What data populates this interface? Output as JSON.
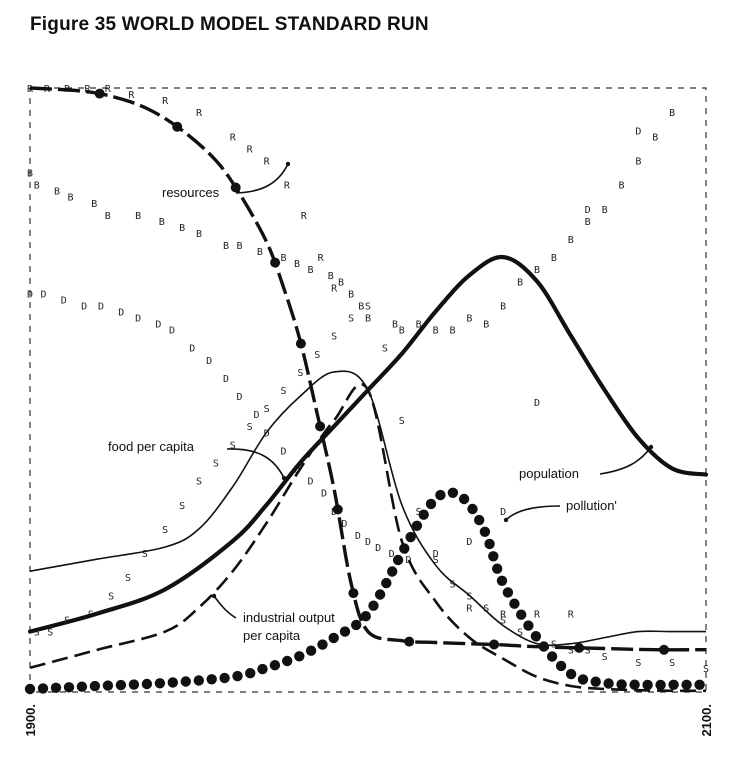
{
  "title": "Figure 35 WORLD MODEL STANDARD RUN",
  "chart_data": {
    "type": "line",
    "title": "Figure 35 WORLD MODEL STANDARD RUN",
    "xlim": [
      1900,
      2100
    ],
    "ylim": [
      0,
      1
    ],
    "x_tick_labels": [
      "1900.",
      "2100."
    ],
    "grid": false,
    "series": [
      {
        "name": "resources",
        "style": "thick-dashed-dots",
        "x": [
          1900,
          1915,
          1925,
          1935,
          1945,
          1955,
          1962,
          1970,
          1975,
          1980,
          1985,
          1990,
          1995,
          2000,
          2010,
          2020,
          2030,
          2040,
          2050,
          2070,
          2085,
          2100
        ],
        "y": [
          1.0,
          0.995,
          0.985,
          0.965,
          0.93,
          0.88,
          0.825,
          0.745,
          0.67,
          0.58,
          0.46,
          0.335,
          0.18,
          0.1,
          0.085,
          0.082,
          0.08,
          0.078,
          0.075,
          0.072,
          0.07,
          0.07
        ]
      },
      {
        "name": "population",
        "style": "thick-solid",
        "x": [
          1900,
          1920,
          1940,
          1960,
          1970,
          1980,
          1990,
          2000,
          2010,
          2020,
          2030,
          2040,
          2050,
          2060,
          2070,
          2080,
          2090,
          2100
        ],
        "y": [
          0.1,
          0.13,
          0.17,
          0.25,
          0.31,
          0.38,
          0.44,
          0.5,
          0.56,
          0.63,
          0.69,
          0.72,
          0.68,
          0.59,
          0.5,
          0.42,
          0.37,
          0.36
        ]
      },
      {
        "name": "pollution",
        "style": "dots",
        "x": [
          1900,
          1920,
          1940,
          1960,
          1970,
          1980,
          1990,
          2000,
          2010,
          2015,
          2020,
          2025,
          2030,
          2035,
          2040,
          2050,
          2060,
          2070,
          2080,
          2090,
          2100
        ],
        "y": [
          0.005,
          0.01,
          0.015,
          0.025,
          0.04,
          0.06,
          0.09,
          0.13,
          0.23,
          0.28,
          0.32,
          0.33,
          0.31,
          0.26,
          0.18,
          0.09,
          0.03,
          0.015,
          0.012,
          0.012,
          0.012
        ]
      },
      {
        "name": "food per capita",
        "style": "thin-solid",
        "x": [
          1900,
          1920,
          1940,
          1950,
          1960,
          1970,
          1980,
          1990,
          2000,
          2010,
          2020,
          2030,
          2040,
          2050,
          2060,
          2070,
          2080,
          2090,
          2100
        ],
        "y": [
          0.2,
          0.22,
          0.24,
          0.27,
          0.34,
          0.43,
          0.49,
          0.53,
          0.5,
          0.31,
          0.21,
          0.16,
          0.11,
          0.08,
          0.08,
          0.09,
          0.1,
          0.1,
          0.1
        ]
      },
      {
        "name": "industrial output per capita",
        "style": "dashed",
        "x": [
          1900,
          1920,
          1940,
          1950,
          1960,
          1970,
          1980,
          1990,
          2000,
          2010,
          2020,
          2030,
          2040,
          2050,
          2060,
          2070,
          2080,
          2090,
          2100
        ],
        "y": [
          0.04,
          0.07,
          0.1,
          0.14,
          0.2,
          0.28,
          0.37,
          0.45,
          0.5,
          0.25,
          0.15,
          0.09,
          0.055,
          0.025,
          0.01,
          0.005,
          0.003,
          0.002,
          0.002
        ]
      }
    ],
    "marker_series": [
      {
        "letter": "B",
        "x": [
          1900,
          1902,
          1908,
          1912,
          1919,
          1923,
          1932,
          1939,
          1945,
          1950,
          1958,
          1962,
          1968,
          1975,
          1979,
          1983,
          1989,
          1992,
          1995,
          1998,
          2000,
          2008,
          2010,
          2015,
          2020,
          2025,
          2030,
          2035,
          2040,
          2045,
          2050,
          2055,
          2060,
          2065,
          2070,
          2075,
          2080,
          2085,
          2090
        ],
        "y": [
          0.86,
          0.84,
          0.83,
          0.82,
          0.81,
          0.79,
          0.79,
          0.78,
          0.77,
          0.76,
          0.74,
          0.74,
          0.73,
          0.72,
          0.71,
          0.7,
          0.69,
          0.68,
          0.66,
          0.64,
          0.62,
          0.61,
          0.6,
          0.61,
          0.6,
          0.6,
          0.62,
          0.61,
          0.64,
          0.68,
          0.7,
          0.72,
          0.75,
          0.78,
          0.8,
          0.84,
          0.88,
          0.92,
          0.96
        ]
      },
      {
        "letter": "D",
        "x": [
          1900,
          1904,
          1910,
          1916,
          1921,
          1927,
          1932,
          1938,
          1942,
          1948,
          1953,
          1958,
          1962,
          1967,
          1970,
          1975,
          1979,
          1983,
          1987,
          1990,
          1993,
          1997,
          2000,
          2003,
          2007,
          2012,
          2020,
          2030,
          2040,
          2050,
          2065,
          2080
        ],
        "y": [
          0.66,
          0.66,
          0.65,
          0.64,
          0.64,
          0.63,
          0.62,
          0.61,
          0.6,
          0.57,
          0.55,
          0.52,
          0.49,
          0.46,
          0.43,
          0.4,
          0.37,
          0.35,
          0.33,
          0.3,
          0.28,
          0.26,
          0.25,
          0.24,
          0.23,
          0.22,
          0.23,
          0.25,
          0.3,
          0.48,
          0.8,
          0.93
        ]
      },
      {
        "letter": "S",
        "x": [
          1902,
          1906,
          1911,
          1918,
          1924,
          1929,
          1934,
          1940,
          1945,
          1950,
          1955,
          1960,
          1965,
          1970,
          1975,
          1980,
          1985,
          1990,
          1995,
          2000,
          2005,
          2010,
          2015,
          2020,
          2025,
          2030,
          2035,
          2040,
          2045,
          2050,
          2055,
          2060,
          2065,
          2070,
          2080,
          2090,
          2100
        ],
        "y": [
          0.1,
          0.1,
          0.12,
          0.13,
          0.16,
          0.19,
          0.23,
          0.27,
          0.31,
          0.35,
          0.38,
          0.41,
          0.44,
          0.47,
          0.5,
          0.53,
          0.56,
          0.59,
          0.62,
          0.64,
          0.57,
          0.45,
          0.3,
          0.22,
          0.18,
          0.16,
          0.14,
          0.12,
          0.1,
          0.09,
          0.08,
          0.07,
          0.07,
          0.06,
          0.05,
          0.05,
          0.04
        ]
      },
      {
        "letter": "R",
        "x": [
          1900,
          1905,
          1911,
          1917,
          1923,
          1930,
          1940,
          1950,
          1960,
          1965,
          1970,
          1976,
          1981,
          1986,
          1990,
          2030,
          2040,
          2050,
          2060
        ],
        "y": [
          1.0,
          1.0,
          1.0,
          1.0,
          1.0,
          0.99,
          0.98,
          0.96,
          0.92,
          0.9,
          0.88,
          0.84,
          0.79,
          0.72,
          0.67,
          0.14,
          0.13,
          0.13,
          0.13
        ]
      }
    ],
    "annotations": [
      {
        "text": "resources"
      },
      {
        "text": "food per capita"
      },
      {
        "text": "population"
      },
      {
        "text": "pollution'"
      },
      {
        "text": "industrial output"
      },
      {
        "text": "per capita"
      }
    ]
  }
}
